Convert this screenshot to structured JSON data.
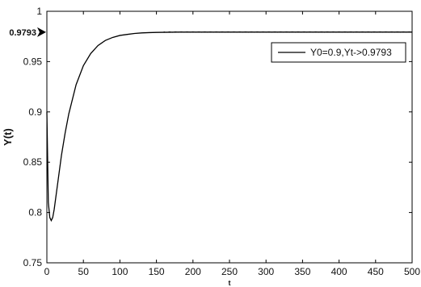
{
  "chart_data": {
    "type": "line",
    "title": "",
    "xlabel": "t",
    "ylabel": "Y(t)",
    "xlim": [
      0,
      500
    ],
    "ylim": [
      0.75,
      1.0
    ],
    "x_ticks": [
      0,
      50,
      100,
      150,
      200,
      250,
      300,
      350,
      400,
      450,
      500
    ],
    "y_ticks": [
      0.75,
      0.8,
      0.85,
      0.9,
      0.95,
      1.0
    ],
    "y_tick_labels": [
      "0.75",
      "0.8",
      "0.85",
      "0.9",
      "0.95",
      "1"
    ],
    "grid": false,
    "legend_position": "top-right",
    "annotation": {
      "label": "0.9793",
      "y": 0.9793
    },
    "series": [
      {
        "name": "Y0=0.9,Yt->0.9793",
        "color": "#000000",
        "x": [
          0,
          2,
          4,
          6,
          8,
          10,
          15,
          20,
          25,
          30,
          40,
          50,
          60,
          70,
          80,
          90,
          100,
          110,
          120,
          130,
          140,
          150,
          160,
          170,
          180,
          200,
          220,
          250,
          300,
          350,
          400,
          450,
          500
        ],
        "y": [
          0.9,
          0.81,
          0.795,
          0.792,
          0.795,
          0.803,
          0.83,
          0.857,
          0.879,
          0.898,
          0.927,
          0.946,
          0.958,
          0.966,
          0.971,
          0.974,
          0.976,
          0.977,
          0.978,
          0.9785,
          0.9788,
          0.979,
          0.9791,
          0.9792,
          0.9793,
          0.9793,
          0.9793,
          0.9793,
          0.9793,
          0.9793,
          0.9793,
          0.9793,
          0.9793
        ]
      }
    ]
  }
}
